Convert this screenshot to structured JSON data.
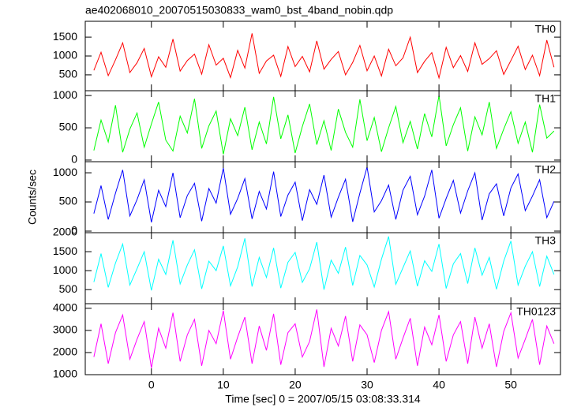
{
  "chart_data": {
    "type": "line",
    "title": "ae402068010_20070515030833_wam0_bst_4band_nobin.qdp",
    "xlabel": "Time [sec] 0 = 2007/05/15 03:08:33.314",
    "ylabel": "Counts/sec",
    "xlim": [
      -9.2,
      56.9
    ],
    "xticks": [
      0,
      10,
      20,
      30,
      40,
      50
    ],
    "x": [
      -8,
      -7,
      -6,
      -5,
      -4,
      -3,
      -2,
      -1,
      0,
      1,
      2,
      3,
      4,
      5,
      6,
      7,
      8,
      9,
      10,
      11,
      12,
      13,
      14,
      15,
      16,
      17,
      18,
      19,
      20,
      21,
      22,
      23,
      24,
      25,
      26,
      27,
      28,
      29,
      30,
      31,
      32,
      33,
      34,
      35,
      36,
      37,
      38,
      39,
      40,
      41,
      42,
      43,
      44,
      45,
      46,
      47,
      48,
      49,
      50,
      51,
      52,
      53,
      54,
      55,
      56
    ],
    "panels": [
      {
        "name": "TH0",
        "color": "#ff0000",
        "ylim": [
          80,
          1920
        ],
        "yticks": [
          500,
          1000,
          1500
        ],
        "values": [
          620,
          1100,
          480,
          900,
          1350,
          560,
          820,
          1200,
          450,
          980,
          700,
          1450,
          600,
          880,
          1050,
          520,
          1300,
          760,
          940,
          430,
          1150,
          680,
          1600,
          540,
          870,
          1020,
          460,
          1250,
          720,
          990,
          580,
          1400,
          650,
          910,
          1120,
          500,
          830,
          1280,
          610,
          1000,
          470,
          1180,
          740,
          950,
          1500,
          560,
          860,
          1090,
          420,
          1230,
          690,
          1010,
          590,
          1350,
          780,
          930,
          1140,
          510,
          880,
          1260,
          640,
          1020,
          480,
          1420,
          700
        ]
      },
      {
        "name": "TH1",
        "color": "#00ff00",
        "ylim": [
          -25,
          1075
        ],
        "yticks": [
          0,
          500,
          1000
        ],
        "values": [
          150,
          620,
          280,
          850,
          120,
          480,
          730,
          200,
          560,
          900,
          310,
          140,
          680,
          420,
          950,
          180,
          530,
          760,
          90,
          640,
          380,
          820,
          160,
          590,
          250,
          980,
          330,
          700,
          110,
          520,
          870,
          240,
          610,
          150,
          790,
          430,
          200,
          940,
          300,
          660,
          130,
          500,
          830,
          270,
          600,
          170,
          720,
          360,
          1000,
          220,
          550,
          810,
          140,
          670,
          390,
          900,
          180,
          480,
          750,
          260,
          590,
          120,
          860,
          340,
          450
        ]
      },
      {
        "name": "TH2",
        "color": "#0000ff",
        "ylim": [
          -27,
          1190
        ],
        "yticks": [
          0,
          500,
          1000
        ],
        "values": [
          300,
          780,
          200,
          650,
          1050,
          260,
          540,
          880,
          150,
          700,
          420,
          1000,
          230,
          610,
          820,
          170,
          730,
          480,
          1080,
          290,
          560,
          900,
          210,
          680,
          380,
          1020,
          250,
          620,
          840,
          180,
          710,
          460,
          960,
          240,
          580,
          890,
          160,
          650,
          1100,
          330,
          520,
          790,
          200,
          700,
          940,
          280,
          600,
          1050,
          220,
          560,
          870,
          310,
          690,
          1000,
          190,
          640,
          810,
          260,
          740,
          980,
          350,
          600,
          880,
          230,
          510
        ]
      },
      {
        "name": "TH3",
        "color": "#00ffff",
        "ylim": [
          130,
          2000
        ],
        "yticks": [
          500,
          1000,
          1500,
          2000
        ],
        "values": [
          700,
          1450,
          560,
          1200,
          1700,
          620,
          1050,
          1500,
          480,
          1300,
          900,
          1800,
          650,
          1150,
          1550,
          520,
          1250,
          1000,
          1650,
          600,
          1100,
          1850,
          580,
          1350,
          820,
          1600,
          540,
          1220,
          1480,
          690,
          1050,
          1750,
          500,
          1280,
          930,
          1620,
          610,
          1400,
          1150,
          570,
          1300,
          1900,
          640,
          1080,
          1520,
          590,
          1260,
          980,
          1700,
          530,
          1180,
          1450,
          660,
          1600,
          880,
          1350,
          510,
          1250,
          1780,
          620,
          1120,
          1500,
          580,
          1380,
          900
        ]
      },
      {
        "name": "TH0123",
        "color": "#ff00ff",
        "ylim": [
          1000,
          4210
        ],
        "yticks": [
          1000,
          2000,
          3000,
          4000
        ],
        "values": [
          1800,
          3300,
          1500,
          2900,
          3700,
          1700,
          2600,
          3400,
          1300,
          3100,
          2200,
          3800,
          1600,
          2800,
          3500,
          1400,
          3000,
          2400,
          3900,
          1700,
          2700,
          3600,
          1500,
          3200,
          2100,
          3750,
          1450,
          2900,
          3300,
          1800,
          2500,
          3950,
          1350,
          3100,
          2300,
          3650,
          1600,
          3250,
          2800,
          1550,
          3000,
          3850,
          1700,
          2650,
          3550,
          1400,
          3150,
          2350,
          3700,
          1600,
          2800,
          3400,
          1500,
          3600,
          2200,
          3300,
          1350,
          2950,
          3800,
          1750,
          2600,
          3500,
          1450,
          3200,
          2400
        ]
      }
    ]
  }
}
